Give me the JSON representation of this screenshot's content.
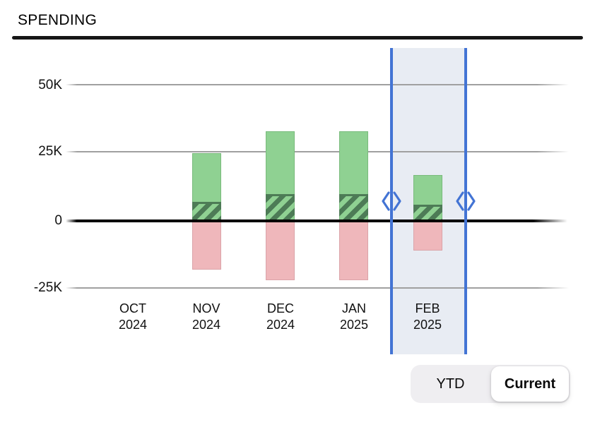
{
  "header": {
    "title": "SPENDING"
  },
  "y_axis": {
    "labels": [
      "50K",
      "25K",
      "0",
      "-25K"
    ]
  },
  "chart_data": {
    "type": "bar",
    "title": "SPENDING",
    "unit": "K",
    "categories": [
      {
        "month": "OCT",
        "year": "2024"
      },
      {
        "month": "NOV",
        "year": "2024"
      },
      {
        "month": "DEC",
        "year": "2024"
      },
      {
        "month": "JAN",
        "year": "2025"
      },
      {
        "month": "FEB",
        "year": "2025"
      }
    ],
    "series": [
      {
        "name": "inflow-green",
        "values_k": [
          0,
          25,
          33,
          33,
          17
        ]
      },
      {
        "name": "inflow-hatched-overlay",
        "values_k": [
          0,
          7,
          10,
          10,
          6
        ]
      },
      {
        "name": "outflow-pink",
        "values_k": [
          0,
          -18,
          -22,
          -22,
          -11
        ]
      }
    ],
    "y_ticks_k": [
      50,
      25,
      0,
      -25
    ],
    "ylim_k": [
      -32,
      64
    ],
    "grid": true,
    "baseline_emphasized": true,
    "selected_range": {
      "category": "FEB 2025"
    }
  },
  "toggle": {
    "options": [
      {
        "label": "YTD",
        "selected": false
      },
      {
        "label": "Current",
        "selected": true
      }
    ]
  },
  "colors": {
    "bar_positive": "#8fd192",
    "bar_positive_border": "#79bb7c",
    "bar_hatch_dark": "#4d7b56",
    "bar_negative": "#efb7bb",
    "bar_negative_border": "#dba4a9",
    "selection_line": "#4374d4",
    "selection_fill": "#e8ecf3",
    "gridline": "#a0a0a0",
    "axis_zero": "#000000",
    "text": "#111111"
  }
}
